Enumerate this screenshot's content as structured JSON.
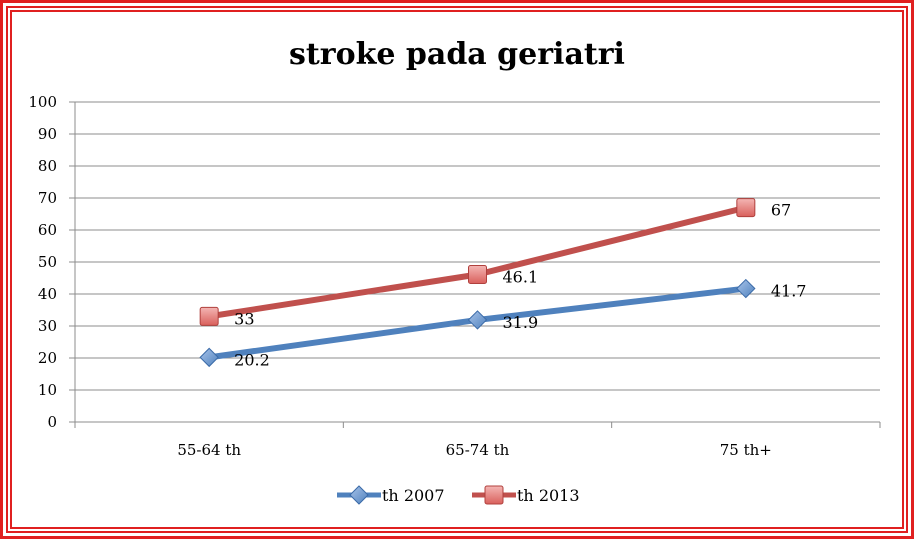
{
  "chart_data": {
    "type": "line",
    "title": "stroke pada geriatri",
    "xlabel": "",
    "ylabel": "",
    "categories": [
      "55-64 th",
      "65-74 th",
      "75 th+"
    ],
    "ylim": [
      0,
      100
    ],
    "yticks": [
      0,
      10,
      20,
      30,
      40,
      50,
      60,
      70,
      80,
      90,
      100
    ],
    "grid": true,
    "legend_position": "bottom",
    "series": [
      {
        "name": "th 2007",
        "values": [
          20.2,
          31.9,
          41.7
        ],
        "labels": [
          "20.2",
          "31.9",
          "41.7"
        ],
        "color": "#4f81bd",
        "marker": "diamond"
      },
      {
        "name": "th 2013",
        "values": [
          33,
          46.1,
          67
        ],
        "labels": [
          "33",
          "46.1",
          "67"
        ],
        "color": "#c0504d",
        "marker": "square"
      }
    ]
  }
}
